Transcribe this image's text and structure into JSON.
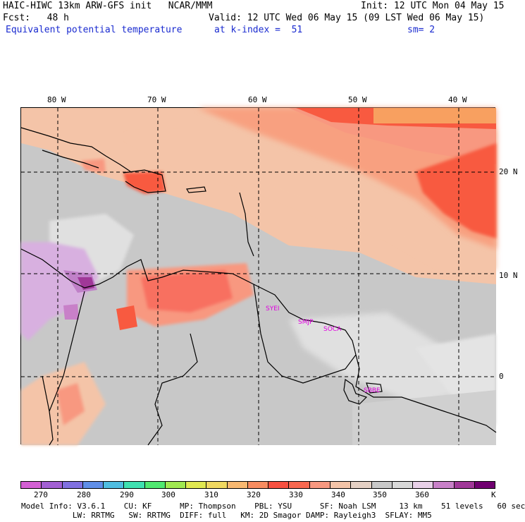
{
  "header": {
    "line1_left": "HAIC-HIWC 13km ARW-GFS init   NCAR/MMM",
    "line1_right": "Init: 12 UTC Mon 04 May 15",
    "line2_left": "Fcst:   48 h",
    "line2_right": "Valid: 12 UTC Wed 06 May 15 (09 LST Wed 06 May 15)",
    "field_name": "Equivalent potential temperature",
    "at_level": "at k-index =  51",
    "smoothing": "sm= 2"
  },
  "longitude_labels": [
    "80 W",
    "70 W",
    "60 W",
    "50 W",
    "40 W"
  ],
  "latitude_labels": [
    "20 N",
    "10 N",
    "0"
  ],
  "stations": [
    "SYEI",
    "SMJP",
    "SOCA",
    "SBBE"
  ],
  "colorbar": {
    "colors": [
      "#d35fd3",
      "#a25fd3",
      "#8070e0",
      "#5f8ee8",
      "#4fbde0",
      "#3fe0b0",
      "#50e870",
      "#a0e850",
      "#e0e850",
      "#f0d860",
      "#f8b870",
      "#f88c60",
      "#f85040",
      "#f86850",
      "#f89880",
      "#f4c4a8",
      "#e4d0c4",
      "#c8c8c8",
      "#d8d8d8",
      "#e8d0e8",
      "#c880c8",
      "#a03898",
      "#700070"
    ],
    "tick_labels": [
      "270",
      "280",
      "290",
      "300",
      "310",
      "320",
      "330",
      "340",
      "350",
      "360"
    ],
    "unit": "K"
  },
  "footer": {
    "line1": "Model Info: V3.6.1    CU: KF      MP: Thompson    PBL: YSU      SF: Noah LSM     13 km    51 levels   60 sec",
    "line2": "           LW: RRTMG   SW: RRTMG  DIFF: full   KM: 2D Smagor DAMP: Rayleigh3  SFLAY: MM5"
  }
}
